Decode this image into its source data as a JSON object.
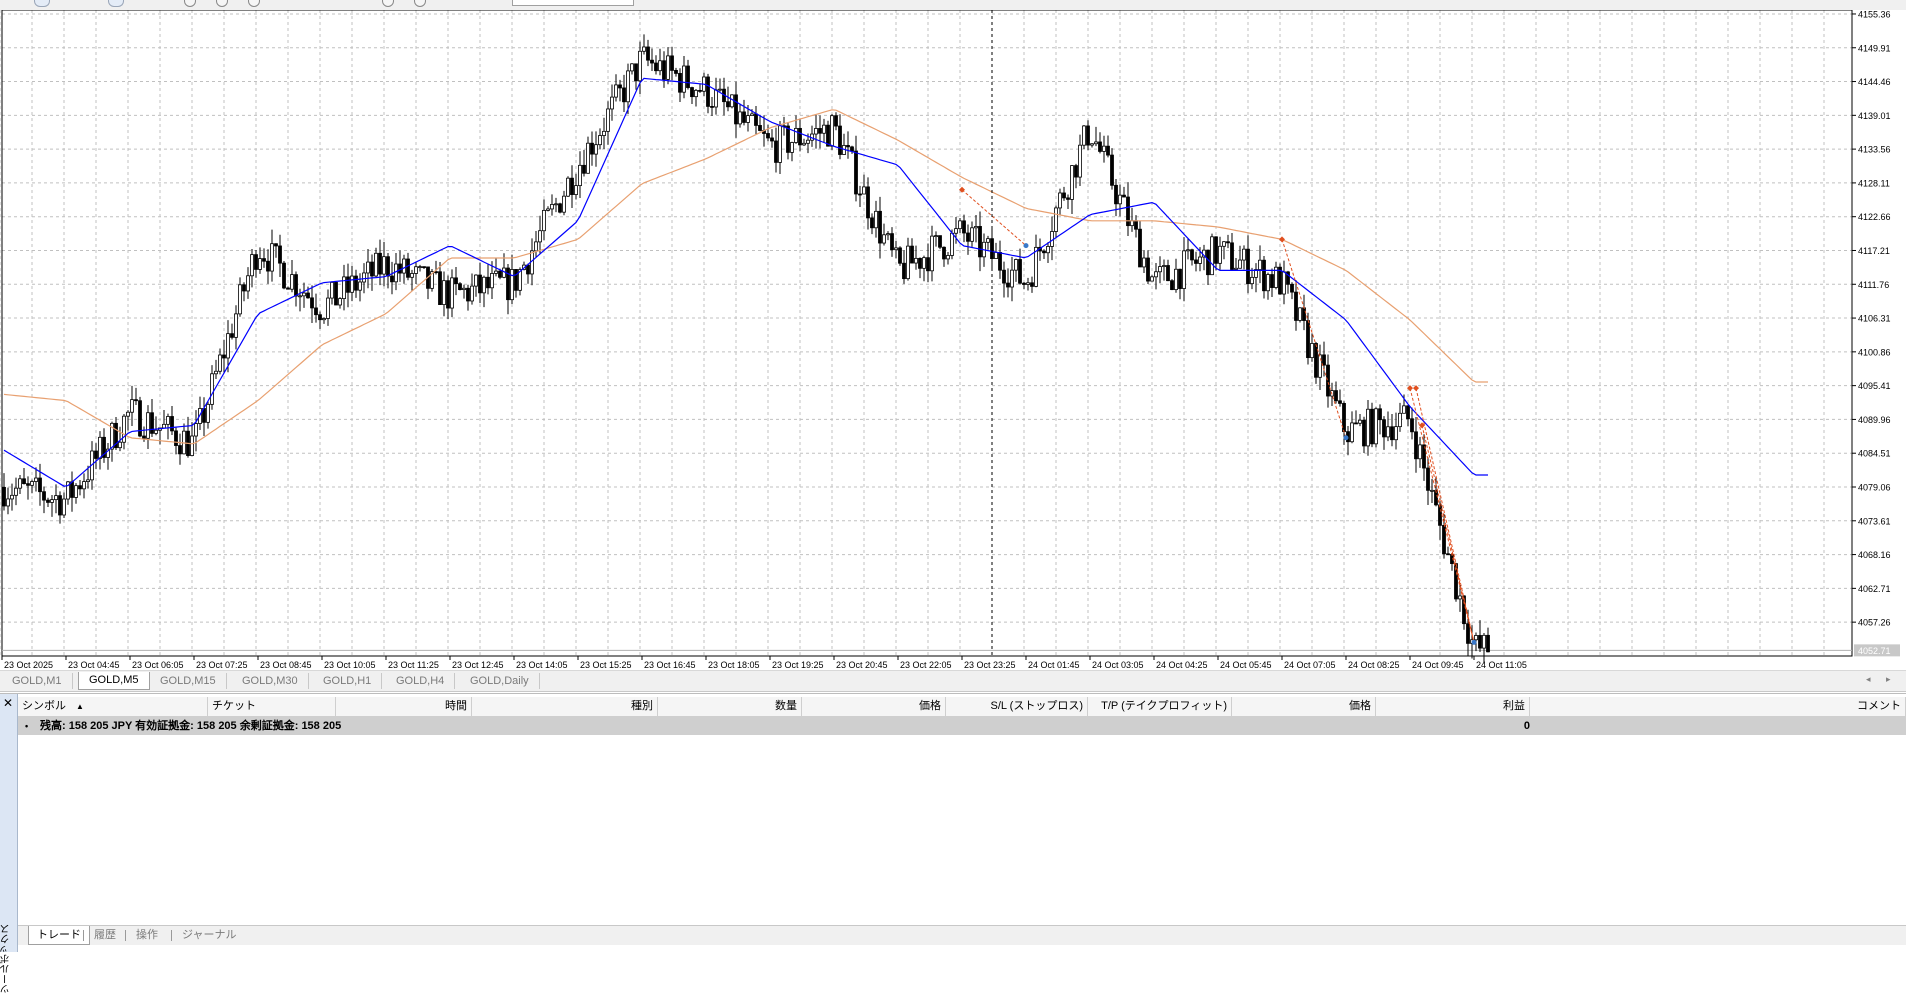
{
  "chart": {
    "symbol": "GOLD",
    "timeframe": "M5",
    "price_axis_labels": [
      "4155.36",
      "4149.91",
      "4144.46",
      "4139.01",
      "4133.56",
      "4128.11",
      "4122.66",
      "4117.21",
      "4111.76",
      "4106.31",
      "4100.86",
      "4095.41",
      "4089.96",
      "4084.51",
      "4079.06",
      "4073.61",
      "4068.16",
      "4062.71",
      "4057.26"
    ],
    "current_price_label": "4052.71",
    "time_axis_labels": [
      "23 Oct 2025",
      "23 Oct 04:45",
      "23 Oct 06:05",
      "23 Oct 07:25",
      "23 Oct 08:45",
      "23 Oct 10:05",
      "23 Oct 11:25",
      "23 Oct 12:45",
      "23 Oct 14:05",
      "23 Oct 15:25",
      "23 Oct 16:45",
      "23 Oct 18:05",
      "23 Oct 19:25",
      "23 Oct 20:45",
      "23 Oct 22:05",
      "23 Oct 23:25",
      "24 Oct 01:45",
      "24 Oct 03:05",
      "24 Oct 04:25",
      "24 Oct 05:45",
      "24 Oct 07:05",
      "24 Oct 08:25",
      "24 Oct 09:45",
      "24 Oct 11:05"
    ],
    "colors": {
      "background": "#ffffff",
      "grid": "#c0c0c0",
      "candle": "#000000",
      "ma_fast": "#0000ff",
      "ma_slow": "#e8a070",
      "trade_marker": "#e05020",
      "trade_line": "#e05020",
      "exit_marker": "#3a78c8"
    }
  },
  "chart_data": {
    "type": "candlestick",
    "x_unit": "5 minute bars",
    "price_range": [
      4051.8,
      4156.0
    ],
    "price_trend_keypoints": [
      {
        "time": "23 Oct 03:30",
        "price": 4079
      },
      {
        "time": "23 Oct 04:45",
        "price": 4077
      },
      {
        "time": "23 Oct 06:05",
        "price": 4091
      },
      {
        "time": "23 Oct 07:25",
        "price": 4086
      },
      {
        "time": "23 Oct 08:45",
        "price": 4118
      },
      {
        "time": "23 Oct 10:05",
        "price": 4108
      },
      {
        "time": "23 Oct 11:25",
        "price": 4115
      },
      {
        "time": "23 Oct 12:45",
        "price": 4110
      },
      {
        "time": "23 Oct 14:05",
        "price": 4112
      },
      {
        "time": "23 Oct 15:25",
        "price": 4131
      },
      {
        "time": "23 Oct 16:45",
        "price": 4148
      },
      {
        "time": "23 Oct 18:05",
        "price": 4143
      },
      {
        "time": "23 Oct 19:25",
        "price": 4134
      },
      {
        "time": "23 Oct 20:45",
        "price": 4137
      },
      {
        "time": "23 Oct 22:05",
        "price": 4114
      },
      {
        "time": "23 Oct 23:25",
        "price": 4120
      },
      {
        "time": "24 Oct 01:45",
        "price": 4112
      },
      {
        "time": "24 Oct 03:05",
        "price": 4137
      },
      {
        "time": "24 Oct 04:25",
        "price": 4112
      },
      {
        "time": "24 Oct 05:45",
        "price": 4117
      },
      {
        "time": "24 Oct 07:05",
        "price": 4112
      },
      {
        "time": "24 Oct 08:25",
        "price": 4088
      },
      {
        "time": "24 Oct 09:45",
        "price": 4090
      },
      {
        "time": "24 Oct 11:05",
        "price": 4053
      }
    ],
    "ma_fast_keypoints": [
      {
        "time": "23 Oct 03:30",
        "price": 4085
      },
      {
        "time": "23 Oct 04:45",
        "price": 4079
      },
      {
        "time": "23 Oct 06:05",
        "price": 4088
      },
      {
        "time": "23 Oct 07:25",
        "price": 4089
      },
      {
        "time": "23 Oct 08:45",
        "price": 4107
      },
      {
        "time": "23 Oct 10:05",
        "price": 4112
      },
      {
        "time": "23 Oct 11:25",
        "price": 4113
      },
      {
        "time": "23 Oct 12:45",
        "price": 4118
      },
      {
        "time": "23 Oct 14:05",
        "price": 4113
      },
      {
        "time": "23 Oct 15:25",
        "price": 4122
      },
      {
        "time": "23 Oct 16:45",
        "price": 4145
      },
      {
        "time": "23 Oct 18:05",
        "price": 4144
      },
      {
        "time": "23 Oct 19:25",
        "price": 4138
      },
      {
        "time": "23 Oct 20:45",
        "price": 4134
      },
      {
        "time": "23 Oct 22:05",
        "price": 4131
      },
      {
        "time": "23 Oct 23:25",
        "price": 4118
      },
      {
        "time": "24 Oct 01:45",
        "price": 4116
      },
      {
        "time": "24 Oct 03:05",
        "price": 4123
      },
      {
        "time": "24 Oct 04:25",
        "price": 4125
      },
      {
        "time": "24 Oct 05:45",
        "price": 4114
      },
      {
        "time": "24 Oct 07:05",
        "price": 4114
      },
      {
        "time": "24 Oct 08:25",
        "price": 4106
      },
      {
        "time": "24 Oct 09:45",
        "price": 4092
      },
      {
        "time": "24 Oct 11:05",
        "price": 4081
      }
    ],
    "ma_slow_keypoints": [
      {
        "time": "23 Oct 03:30",
        "price": 4094
      },
      {
        "time": "23 Oct 04:45",
        "price": 4093
      },
      {
        "time": "23 Oct 06:05",
        "price": 4087
      },
      {
        "time": "23 Oct 07:25",
        "price": 4086
      },
      {
        "time": "23 Oct 08:45",
        "price": 4093
      },
      {
        "time": "23 Oct 10:05",
        "price": 4102
      },
      {
        "time": "23 Oct 11:25",
        "price": 4107
      },
      {
        "time": "23 Oct 12:45",
        "price": 4116
      },
      {
        "time": "23 Oct 14:05",
        "price": 4116
      },
      {
        "time": "23 Oct 15:25",
        "price": 4119
      },
      {
        "time": "23 Oct 16:45",
        "price": 4128
      },
      {
        "time": "23 Oct 18:05",
        "price": 4132
      },
      {
        "time": "23 Oct 19:25",
        "price": 4137
      },
      {
        "time": "23 Oct 20:45",
        "price": 4140
      },
      {
        "time": "23 Oct 22:05",
        "price": 4135
      },
      {
        "time": "23 Oct 23:25",
        "price": 4129
      },
      {
        "time": "24 Oct 01:45",
        "price": 4124
      },
      {
        "time": "24 Oct 03:05",
        "price": 4122
      },
      {
        "time": "24 Oct 04:25",
        "price": 4122
      },
      {
        "time": "24 Oct 05:45",
        "price": 4121
      },
      {
        "time": "24 Oct 07:05",
        "price": 4119
      },
      {
        "time": "24 Oct 08:25",
        "price": 4114
      },
      {
        "time": "24 Oct 09:45",
        "price": 4106
      },
      {
        "time": "24 Oct 11:05",
        "price": 4096
      }
    ],
    "trade_markers": [
      {
        "time": "23 Oct 23:25",
        "price": 4127,
        "kind": "entry"
      },
      {
        "time": "24 Oct 01:45",
        "price": 4118,
        "kind": "exit"
      },
      {
        "time": "24 Oct 07:05",
        "price": 4119,
        "kind": "entry"
      },
      {
        "time": "24 Oct 08:25",
        "price": 4087,
        "kind": "exit"
      },
      {
        "time": "24 Oct 09:45",
        "price": 4095,
        "kind": "entry"
      },
      {
        "time": "24 Oct 09:45",
        "price": 4095,
        "kind": "entry"
      },
      {
        "time": "24 Oct 09:45",
        "price": 4089,
        "kind": "entry"
      },
      {
        "time": "24 Oct 11:05",
        "price": 4054,
        "kind": "exit"
      }
    ]
  },
  "symbol_tabs": [
    "GOLD,M1",
    "GOLD,M5",
    "GOLD,M15",
    "GOLD,M30",
    "GOLD,H1",
    "GOLD,H4",
    "GOLD,Daily"
  ],
  "active_symbol_tab": "GOLD,M5",
  "toolbox": {
    "side_label": "ツールボックス",
    "columns": [
      "シンボル",
      "チケット",
      "時間",
      "種別",
      "数量",
      "価格",
      "S/L (ストップロス)",
      "T/P (テイクプロフィット)",
      "価格",
      "利益",
      "コメント"
    ],
    "sort_indicator": "▲",
    "balance_row": {
      "text": "残高: 158 205 JPY  有効証拠金: 158 205  余剰証拠金: 158 205",
      "profit": "0"
    },
    "tabs": [
      "トレード",
      "履歴",
      "操作",
      "ジャーナル"
    ],
    "active_tab": "トレード"
  }
}
